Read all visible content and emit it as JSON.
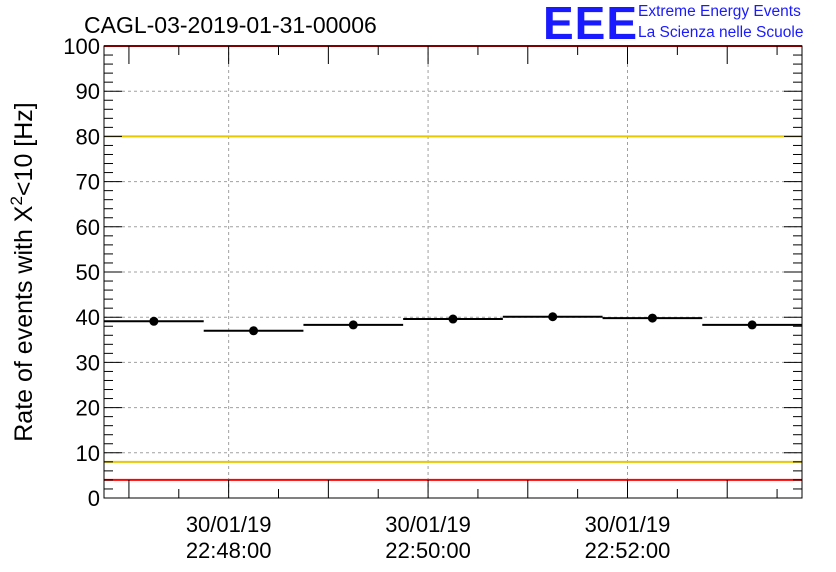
{
  "title": "CAGL-03-2019-01-31-00006",
  "logo": {
    "mark": "EEE",
    "line1": "Extreme Energy Events",
    "line2": "La Scienza nelle Scuole"
  },
  "chart_data": {
    "type": "scatter",
    "title": "CAGL-03-2019-01-31-00006",
    "ylabel_parts": [
      "Rate of events with X",
      "2",
      "<10 [Hz]"
    ],
    "xlabel": "",
    "ylim": [
      0,
      100
    ],
    "yticks": [
      0,
      10,
      20,
      30,
      40,
      50,
      60,
      70,
      80,
      90,
      100
    ],
    "xlim": [
      "30/01/19 22:46:45",
      "30/01/19 22:53:45"
    ],
    "xticks": [
      {
        "date": "30/01/19",
        "time": "22:48:00"
      },
      {
        "date": "30/01/19",
        "time": "22:50:00"
      },
      {
        "date": "30/01/19",
        "time": "22:52:00"
      }
    ],
    "grid": true,
    "bins": [
      {
        "start": "22:46:45",
        "end": "22:47:45",
        "value": 39.1
      },
      {
        "start": "22:47:45",
        "end": "22:48:45",
        "value": 37.0
      },
      {
        "start": "22:48:45",
        "end": "22:49:45",
        "value": 38.3
      },
      {
        "start": "22:49:45",
        "end": "22:50:45",
        "value": 39.6
      },
      {
        "start": "22:50:45",
        "end": "22:51:45",
        "value": 40.1
      },
      {
        "start": "22:51:45",
        "end": "22:52:45",
        "value": 39.8
      },
      {
        "start": "22:52:45",
        "end": "22:53:45",
        "value": 38.3
      }
    ],
    "reference_lines": [
      {
        "value": 100,
        "color": "#ff0000"
      },
      {
        "value": 80,
        "color": "#e8c800"
      },
      {
        "value": 8,
        "color": "#e8c800"
      },
      {
        "value": 4,
        "color": "#ff0000"
      }
    ]
  }
}
